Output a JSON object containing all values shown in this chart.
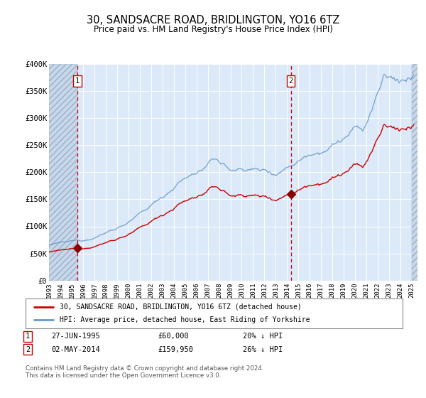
{
  "title": "30, SANDSACRE ROAD, BRIDLINGTON, YO16 6TZ",
  "subtitle": "Price paid vs. HM Land Registry's House Price Index (HPI)",
  "legend_line1": "30, SANDSACRE ROAD, BRIDLINGTON, YO16 6TZ (detached house)",
  "legend_line2": "HPI: Average price, detached house, East Riding of Yorkshire",
  "annotation1_date": "27-JUN-1995",
  "annotation1_price": "£60,000",
  "annotation1_hpi": "20% ↓ HPI",
  "annotation2_date": "02-MAY-2014",
  "annotation2_price": "£159,950",
  "annotation2_hpi": "26% ↓ HPI",
  "footer": "Contains HM Land Registry data © Crown copyright and database right 2024.\nThis data is licensed under the Open Government Licence v3.0.",
  "bg_color": "#dce9f8",
  "hatch_bg": "#c8d8e8",
  "red_color": "#cc0000",
  "blue_color": "#6699cc",
  "marker_color": "#880000",
  "point1_x": 1995.5,
  "point1_y": 60000,
  "point2_x": 2014.33,
  "point2_y": 159950,
  "ylim": [
    0,
    400000
  ],
  "xlim_start": 1993.0,
  "xlim_end": 2025.5,
  "yticks": [
    0,
    50000,
    100000,
    150000,
    200000,
    250000,
    300000,
    350000,
    400000
  ],
  "ytick_labels": [
    "£0",
    "£50K",
    "£100K",
    "£150K",
    "£200K",
    "£250K",
    "£300K",
    "£350K",
    "£400K"
  ],
  "xticks": [
    1993,
    1994,
    1995,
    1996,
    1997,
    1998,
    1999,
    2000,
    2001,
    2002,
    2003,
    2004,
    2005,
    2006,
    2007,
    2008,
    2009,
    2010,
    2011,
    2012,
    2013,
    2014,
    2015,
    2016,
    2017,
    2018,
    2019,
    2020,
    2021,
    2022,
    2023,
    2024,
    2025
  ]
}
